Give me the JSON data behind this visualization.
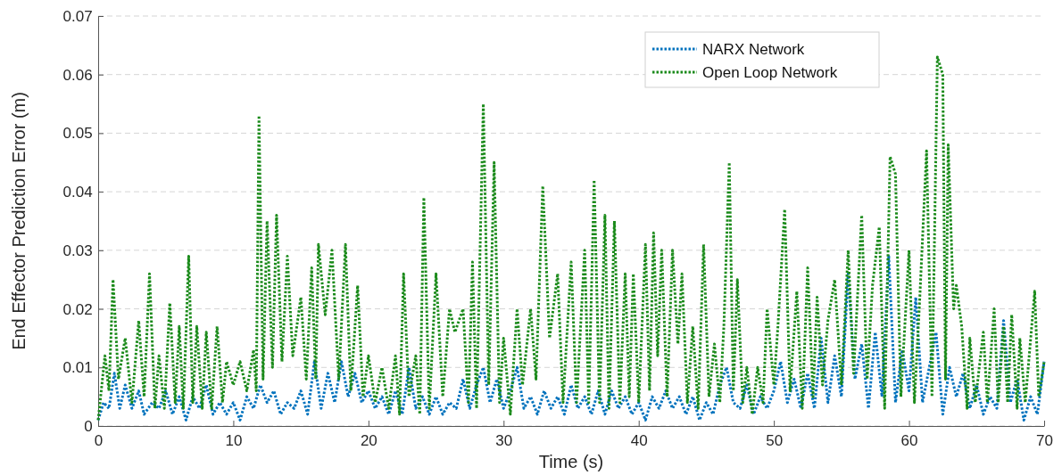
{
  "chart_data": {
    "type": "line",
    "xlabel": "Time (s)",
    "ylabel": "End Effector Prediction Error (m)",
    "xlim": [
      0,
      70
    ],
    "xticks": [
      0,
      10,
      20,
      30,
      40,
      50,
      60,
      70
    ],
    "ylim": [
      0,
      0.07
    ],
    "yticks": [
      0,
      0.01,
      0.02,
      0.03,
      0.04,
      0.05,
      0.06,
      0.07
    ],
    "grid": "y",
    "legend": "top right",
    "line_style": "dotted",
    "series": [
      {
        "name": "NARX Network",
        "color": "#0072bd",
        "x": [
          0,
          0.4,
          0.8,
          1.2,
          1.6,
          2,
          2.5,
          3,
          3.4,
          4,
          4.5,
          5,
          5.5,
          6,
          6.5,
          7,
          7.5,
          8,
          8.5,
          9,
          9.5,
          10,
          10.5,
          11,
          11.5,
          12,
          12.5,
          13,
          13.5,
          14,
          14.5,
          15,
          15.5,
          16,
          16.5,
          17,
          17.5,
          18,
          18.5,
          19,
          19.5,
          20,
          20.5,
          21,
          21.5,
          22,
          22.5,
          23,
          23.5,
          24,
          24.5,
          25,
          25.5,
          26,
          26.5,
          27,
          27.5,
          28,
          28.5,
          29,
          29.5,
          30,
          30.5,
          31,
          31.5,
          32,
          32.5,
          33,
          33.5,
          34,
          34.5,
          35,
          35.5,
          36,
          36.5,
          37,
          37.5,
          38,
          38.5,
          39,
          39.5,
          40,
          40.5,
          41,
          41.5,
          42,
          42.5,
          43,
          43.5,
          44,
          44.5,
          45,
          45.5,
          46,
          46.5,
          47,
          47.5,
          48,
          48.5,
          49,
          49.5,
          50,
          50.5,
          51,
          51.5,
          52,
          52.5,
          53,
          53.5,
          54,
          54.5,
          55,
          55.5,
          56,
          56.5,
          57,
          57.5,
          58,
          58.5,
          59,
          59.5,
          60,
          60.5,
          61,
          61.5,
          62,
          62.5,
          63,
          63.5,
          64,
          64.5,
          65,
          65.5,
          66,
          66.5,
          67,
          67.5,
          68,
          68.5,
          69,
          69.5,
          70
        ],
        "values": [
          0.001,
          0.004,
          0.003,
          0.009,
          0.003,
          0.007,
          0.003,
          0.006,
          0.002,
          0.004,
          0.003,
          0.006,
          0.002,
          0.005,
          0.001,
          0.005,
          0.003,
          0.007,
          0.002,
          0.004,
          0.002,
          0.004,
          0.001,
          0.005,
          0.003,
          0.007,
          0.004,
          0.006,
          0.002,
          0.004,
          0.003,
          0.006,
          0.002,
          0.011,
          0.003,
          0.009,
          0.004,
          0.011,
          0.005,
          0.009,
          0.004,
          0.006,
          0.003,
          0.005,
          0.002,
          0.006,
          0.002,
          0.01,
          0.003,
          0.005,
          0.002,
          0.005,
          0.002,
          0.004,
          0.003,
          0.008,
          0.003,
          0.007,
          0.01,
          0.004,
          0.008,
          0.003,
          0.006,
          0.01,
          0.003,
          0.005,
          0.002,
          0.006,
          0.003,
          0.005,
          0.002,
          0.007,
          0.003,
          0.005,
          0.002,
          0.006,
          0.002,
          0.006,
          0.003,
          0.005,
          0.002,
          0.004,
          0.001,
          0.005,
          0.003,
          0.006,
          0.003,
          0.005,
          0.002,
          0.005,
          0.001,
          0.004,
          0.002,
          0.007,
          0.01,
          0.004,
          0.003,
          0.007,
          0.002,
          0.005,
          0.003,
          0.006,
          0.011,
          0.004,
          0.008,
          0.003,
          0.009,
          0.003,
          0.015,
          0.004,
          0.012,
          0.005,
          0.026,
          0.008,
          0.014,
          0.003,
          0.016,
          0.005,
          0.029,
          0.004,
          0.013,
          0.006,
          0.022,
          0.004,
          0.01,
          0.016,
          0.002,
          0.01,
          0.005,
          0.009,
          0.003,
          0.007,
          0.002,
          0.005,
          0.003,
          0.018,
          0.004,
          0.008,
          0.001,
          0.005,
          0.002,
          0.011
        ]
      },
      {
        "name": "Open Loop Network",
        "color": "#1a8a1a",
        "x": [
          0,
          0.5,
          0.8,
          1.1,
          1.5,
          2,
          2.5,
          3,
          3.4,
          3.8,
          4.2,
          4.5,
          4.9,
          5.3,
          5.7,
          6,
          6.3,
          6.7,
          7,
          7.3,
          7.7,
          8,
          8.4,
          8.8,
          9.2,
          9.5,
          10,
          10.5,
          11,
          11.5,
          11.7,
          11.9,
          12.2,
          12.5,
          12.9,
          13.2,
          13.6,
          14,
          14.4,
          15,
          15.4,
          15.8,
          16.1,
          16.3,
          16.8,
          17.3,
          17.8,
          18.3,
          18.7,
          19.2,
          19.6,
          20,
          20.5,
          21,
          21.5,
          22,
          22.3,
          22.6,
          23,
          23.5,
          23.8,
          24.1,
          24.5,
          25,
          25.5,
          26,
          26.4,
          27,
          27.4,
          27.7,
          28,
          28.5,
          28.9,
          29.3,
          29.7,
          30,
          30.5,
          31,
          31.4,
          32,
          32.4,
          32.9,
          33.4,
          34,
          34.4,
          35,
          35.4,
          36,
          36.3,
          36.7,
          37.1,
          37.5,
          37.8,
          38.2,
          38.6,
          39,
          39.3,
          39.6,
          40,
          40.5,
          40.8,
          41.1,
          41.4,
          41.7,
          42.1,
          42.5,
          42.9,
          43.2,
          43.6,
          44,
          44.4,
          44.8,
          45.2,
          45.6,
          46,
          46.3,
          46.7,
          47,
          47.3,
          47.7,
          48,
          48.4,
          48.8,
          49.2,
          49.5,
          50,
          50.3,
          50.8,
          51.2,
          51.7,
          52.1,
          52.5,
          52.9,
          53.2,
          53.6,
          54,
          54.5,
          55,
          55.5,
          55.9,
          56.5,
          56.9,
          57.3,
          57.8,
          58.2,
          58.6,
          59,
          59.4,
          60,
          60.4,
          60.8,
          61.3,
          61.7,
          62.1,
          62.5,
          62.7,
          62.9,
          63.3,
          63.5,
          63.9,
          64.3,
          64.5,
          64.9,
          65.5,
          65.8,
          66.3,
          66.6,
          67,
          67.3,
          67.6,
          68,
          68.2,
          68.6,
          69.3,
          69.6,
          70
        ],
        "values": [
          0.001,
          0.012,
          0.006,
          0.025,
          0.008,
          0.015,
          0.004,
          0.018,
          0.005,
          0.026,
          0.003,
          0.012,
          0.003,
          0.021,
          0.004,
          0.017,
          0.003,
          0.029,
          0.004,
          0.017,
          0.003,
          0.016,
          0.003,
          0.017,
          0.004,
          0.011,
          0.007,
          0.011,
          0.006,
          0.013,
          0.006,
          0.053,
          0.008,
          0.035,
          0.01,
          0.036,
          0.011,
          0.029,
          0.012,
          0.022,
          0.008,
          0.027,
          0.008,
          0.031,
          0.019,
          0.03,
          0.008,
          0.031,
          0.006,
          0.024,
          0.005,
          0.012,
          0.004,
          0.01,
          0.003,
          0.012,
          0.002,
          0.026,
          0.005,
          0.012,
          0.002,
          0.039,
          0.003,
          0.026,
          0.005,
          0.02,
          0.016,
          0.02,
          0.004,
          0.028,
          0.003,
          0.055,
          0.007,
          0.045,
          0.004,
          0.015,
          0.002,
          0.02,
          0.007,
          0.02,
          0.008,
          0.041,
          0.015,
          0.026,
          0.004,
          0.028,
          0.004,
          0.03,
          0.004,
          0.042,
          0.004,
          0.036,
          0.003,
          0.035,
          0.004,
          0.026,
          0.005,
          0.026,
          0.004,
          0.031,
          0.006,
          0.033,
          0.012,
          0.03,
          0.005,
          0.03,
          0.014,
          0.026,
          0.004,
          0.017,
          0.003,
          0.031,
          0.005,
          0.014,
          0.004,
          0.017,
          0.045,
          0.006,
          0.025,
          0.004,
          0.01,
          0.002,
          0.01,
          0.004,
          0.02,
          0.007,
          0.017,
          0.037,
          0.006,
          0.023,
          0.003,
          0.027,
          0.005,
          0.022,
          0.007,
          0.018,
          0.025,
          0.007,
          0.03,
          0.009,
          0.036,
          0.008,
          0.024,
          0.034,
          0.003,
          0.046,
          0.043,
          0.005,
          0.03,
          0.004,
          0.022,
          0.047,
          0.005,
          0.063,
          0.06,
          0.008,
          0.048,
          0.02,
          0.024,
          0.017,
          0.003,
          0.015,
          0.004,
          0.016,
          0.004,
          0.02,
          0.004,
          0.017,
          0.004,
          0.019,
          0.003,
          0.015,
          0.004,
          0.023,
          0.005,
          0.011
        ]
      }
    ]
  }
}
